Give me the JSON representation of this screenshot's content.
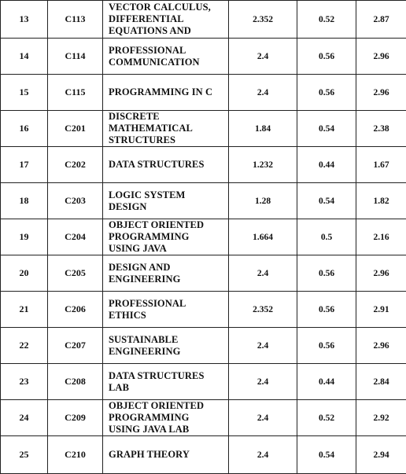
{
  "rows": [
    {
      "no": "13",
      "code": "C113",
      "name": "VECTOR CALCULUS,\nDIFFERENTIAL\nEQUATIONS AND",
      "v1": "2.352",
      "v2": "0.52",
      "v3": "2.87"
    },
    {
      "no": "14",
      "code": "C114",
      "name": "PROFESSIONAL\nCOMMUNICATION",
      "v1": "2.4",
      "v2": "0.56",
      "v3": "2.96"
    },
    {
      "no": "15",
      "code": "C115",
      "name": "PROGRAMMING IN C",
      "v1": "2.4",
      "v2": "0.56",
      "v3": "2.96"
    },
    {
      "no": "16",
      "code": "C201",
      "name": "DISCRETE\nMATHEMATICAL\nSTRUCTURES",
      "v1": "1.84",
      "v2": "0.54",
      "v3": "2.38"
    },
    {
      "no": "17",
      "code": "C202",
      "name": "DATA STRUCTURES",
      "v1": "1.232",
      "v2": "0.44",
      "v3": "1.67"
    },
    {
      "no": "18",
      "code": "C203",
      "name": "LOGIC SYSTEM\nDESIGN",
      "v1": "1.28",
      "v2": "0.54",
      "v3": "1.82"
    },
    {
      "no": "19",
      "code": "C204",
      "name": "OBJECT ORIENTED\nPROGRAMMING\nUSING JAVA",
      "v1": "1.664",
      "v2": "0.5",
      "v3": "2.16"
    },
    {
      "no": "20",
      "code": "C205",
      "name": "DESIGN AND\nENGINEERING",
      "v1": "2.4",
      "v2": "0.56",
      "v3": "2.96"
    },
    {
      "no": "21",
      "code": "C206",
      "name": "PROFESSIONAL\nETHICS",
      "v1": "2.352",
      "v2": "0.56",
      "v3": "2.91"
    },
    {
      "no": "22",
      "code": "C207",
      "name": "SUSTAINABLE\nENGINEERING",
      "v1": "2.4",
      "v2": "0.56",
      "v3": "2.96"
    },
    {
      "no": "23",
      "code": "C208",
      "name": "DATA STRUCTURES\nLAB",
      "v1": "2.4",
      "v2": "0.44",
      "v3": "2.84"
    },
    {
      "no": "24",
      "code": "C209",
      "name": "OBJECT ORIENTED\nPROGRAMMING\nUSING JAVA LAB",
      "v1": "2.4",
      "v2": "0.52",
      "v3": "2.92"
    },
    {
      "no": "25",
      "code": "C210",
      "name": "GRAPH THEORY",
      "v1": "2.4",
      "v2": "0.54",
      "v3": "2.94"
    }
  ]
}
